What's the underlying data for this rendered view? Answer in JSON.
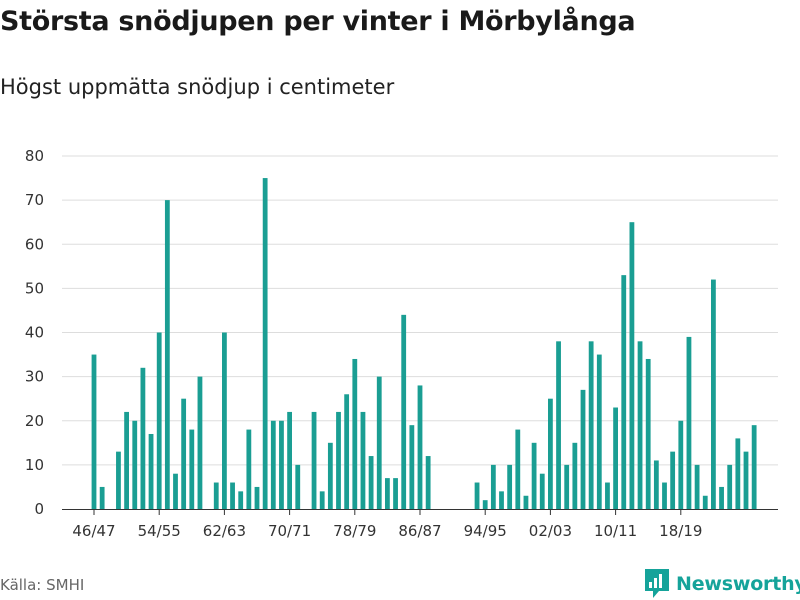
{
  "title": "Största snödjupen per vinter i Mörbylånga",
  "subtitle": "Högst uppmätta snödjup i centimeter",
  "source": "Källa: SMHI",
  "brand": "Newsworthy",
  "colors": {
    "bar": "#1a9e93",
    "grid": "#dddddd",
    "axis": "#333333",
    "brand": "#15a39a"
  },
  "chart_data": {
    "type": "bar",
    "title": "Största snödjupen per vinter i Mörbylånga",
    "subtitle": "Högst uppmätta snödjup i centimeter",
    "xlabel": "",
    "ylabel": "",
    "ylim": [
      0,
      80
    ],
    "yticks": [
      0,
      10,
      20,
      30,
      40,
      50,
      60,
      70,
      80
    ],
    "xtick_labels": [
      "46/47",
      "54/55",
      "62/63",
      "70/71",
      "78/79",
      "86/87",
      "94/95",
      "02/03",
      "10/11",
      "18/19"
    ],
    "grid": true,
    "legend": "none",
    "categories": [
      "46/47",
      "47/48",
      "48/49",
      "49/50",
      "50/51",
      "51/52",
      "52/53",
      "53/54",
      "54/55",
      "55/56",
      "56/57",
      "57/58",
      "58/59",
      "59/60",
      "60/61",
      "61/62",
      "62/63",
      "63/64",
      "64/65",
      "65/66",
      "66/67",
      "67/68",
      "68/69",
      "69/70",
      "70/71",
      "71/72",
      "72/73",
      "73/74",
      "74/75",
      "75/76",
      "76/77",
      "77/78",
      "78/79",
      "79/80",
      "80/81",
      "81/82",
      "82/83",
      "83/84",
      "84/85",
      "85/86",
      "86/87",
      "87/88",
      "88/89",
      "89/90",
      "90/91",
      "91/92",
      "92/93",
      "93/94",
      "94/95",
      "95/96",
      "96/97",
      "97/98",
      "98/99",
      "99/00",
      "00/01",
      "01/02",
      "02/03",
      "03/04",
      "04/05",
      "05/06",
      "06/07",
      "07/08",
      "08/09",
      "09/10",
      "10/11",
      "11/12",
      "12/13",
      "13/14",
      "14/15",
      "15/16",
      "16/17",
      "17/18",
      "18/19",
      "19/20",
      "20/21",
      "21/22",
      "22/23",
      "23/24",
      "24/25",
      "25/26",
      "26/27",
      "27/28"
    ],
    "values": [
      35,
      5,
      null,
      13,
      22,
      20,
      32,
      17,
      40,
      70,
      8,
      25,
      18,
      30,
      null,
      6,
      40,
      6,
      4,
      18,
      5,
      75,
      20,
      20,
      22,
      10,
      null,
      22,
      4,
      15,
      22,
      26,
      34,
      22,
      12,
      30,
      7,
      7,
      44,
      19,
      28,
      12,
      null,
      null,
      null,
      null,
      null,
      6,
      2,
      10,
      4,
      10,
      18,
      3,
      15,
      8,
      25,
      38,
      10,
      15,
      27,
      38,
      35,
      6,
      23,
      53,
      65,
      38,
      34,
      11,
      6,
      13,
      20,
      39,
      10,
      3,
      52,
      5,
      10,
      16,
      13,
      19
    ]
  }
}
